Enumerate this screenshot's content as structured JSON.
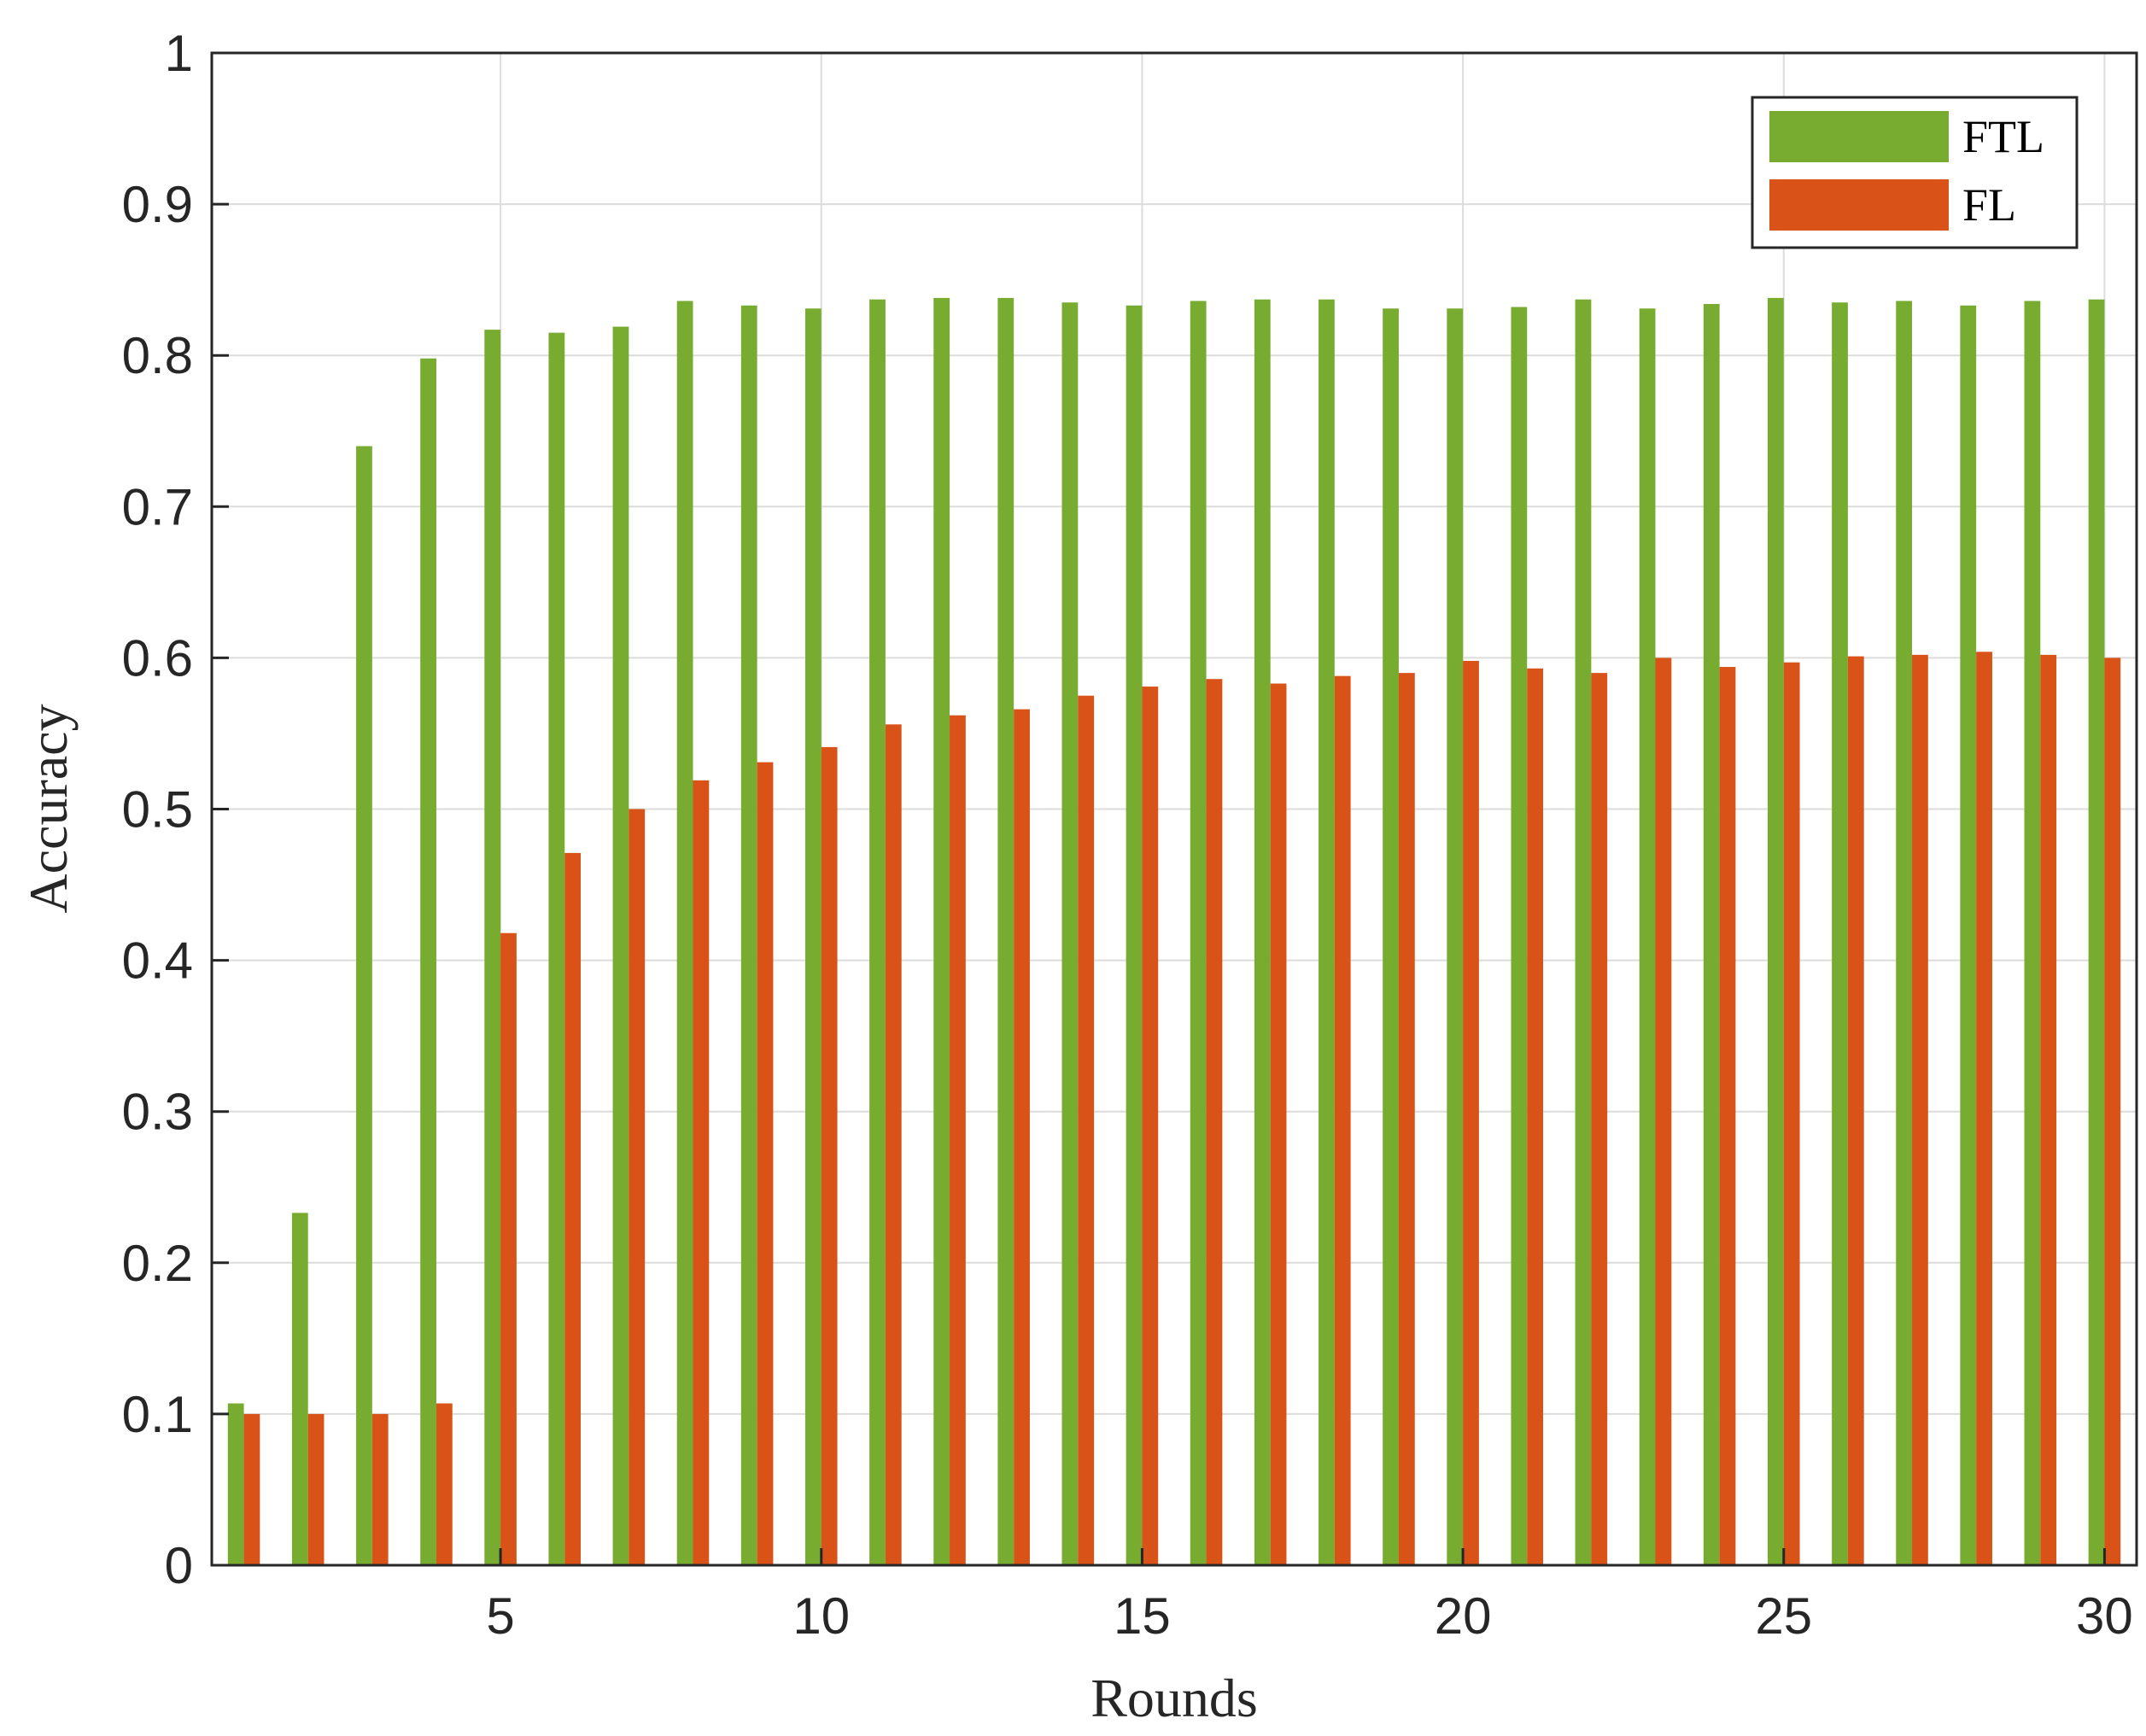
{
  "chart_data": {
    "type": "bar",
    "xlabel": "Rounds",
    "ylabel": "Accuracy",
    "xlim": [
      0.5,
      30.5
    ],
    "ylim": [
      0,
      1
    ],
    "x": [
      1,
      2,
      3,
      4,
      5,
      6,
      7,
      8,
      9,
      10,
      11,
      12,
      13,
      14,
      15,
      16,
      17,
      18,
      19,
      20,
      21,
      22,
      23,
      24,
      25,
      26,
      27,
      28,
      29,
      30
    ],
    "x_ticks": [
      5,
      10,
      15,
      20,
      25,
      30
    ],
    "y_ticks": [
      0,
      0.1,
      0.2,
      0.3,
      0.4,
      0.5,
      0.6,
      0.7,
      0.8,
      0.9,
      1
    ],
    "x_tick_labels": [
      "5",
      "10",
      "15",
      "20",
      "25",
      "30"
    ],
    "y_tick_labels": [
      "0",
      "0.1",
      "0.2",
      "0.3",
      "0.4",
      "0.5",
      "0.6",
      "0.7",
      "0.8",
      "0.9",
      "1"
    ],
    "grid": true,
    "legend_position": "top-right",
    "series": [
      {
        "name": "FTL",
        "color": "#77ac30",
        "values": [
          0.107,
          0.233,
          0.74,
          0.798,
          0.817,
          0.815,
          0.819,
          0.836,
          0.833,
          0.831,
          0.837,
          0.838,
          0.838,
          0.835,
          0.833,
          0.836,
          0.837,
          0.837,
          0.831,
          0.831,
          0.832,
          0.837,
          0.831,
          0.834,
          0.838,
          0.835,
          0.836,
          0.833,
          0.836,
          0.837
        ]
      },
      {
        "name": "FL",
        "color": "#d95319",
        "values": [
          0.1,
          0.1,
          0.1,
          0.107,
          0.418,
          0.471,
          0.5,
          0.519,
          0.531,
          0.541,
          0.556,
          0.562,
          0.566,
          0.575,
          0.581,
          0.586,
          0.583,
          0.588,
          0.59,
          0.598,
          0.593,
          0.59,
          0.6,
          0.594,
          0.597,
          0.601,
          0.602,
          0.604,
          0.602,
          0.6
        ]
      }
    ]
  }
}
